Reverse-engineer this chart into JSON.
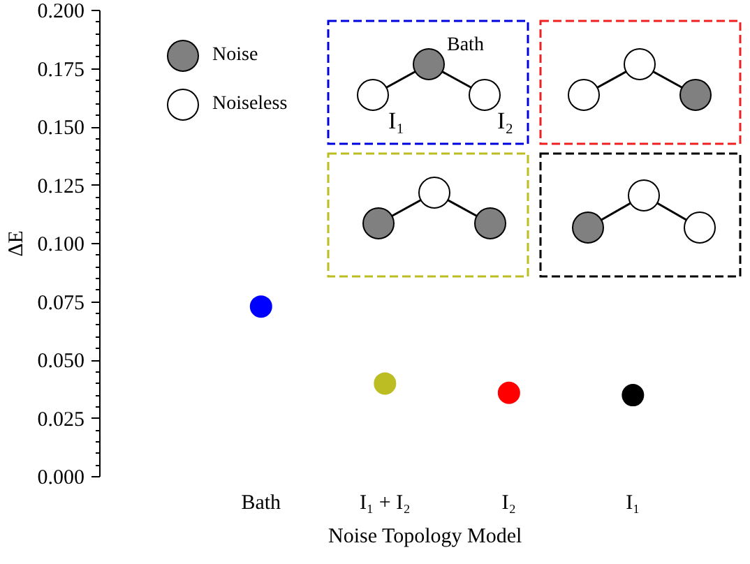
{
  "chart_data": {
    "type": "scatter",
    "xlabel": "Noise Topology Model",
    "ylabel": "ΔE",
    "categories": [
      "Bath",
      "I₁ + I₂",
      "I₂",
      "I₁"
    ],
    "values": [
      0.073,
      0.04,
      0.036,
      0.035
    ],
    "colors": [
      "#0000ff",
      "#bcbd22",
      "#ff0000",
      "#000000"
    ],
    "marker": "circle",
    "ylim": [
      0,
      0.2
    ],
    "yticks": [
      {
        "value": 0,
        "label": "0.000"
      },
      {
        "value": 0.025,
        "label": "0.025"
      },
      {
        "value": 0.05,
        "label": "0.050"
      },
      {
        "value": 0.075,
        "label": "0.075"
      },
      {
        "value": 0.1,
        "label": "0.100"
      },
      {
        "value": 0.125,
        "label": "0.125"
      },
      {
        "value": 0.15,
        "label": "0.150"
      },
      {
        "value": 0.175,
        "label": "0.175"
      },
      {
        "value": 0.2,
        "label": "0.200"
      }
    ],
    "grid": false,
    "annotations": [
      "Noise",
      "Noiseless",
      "Bath",
      "I₁",
      "I₂"
    ]
  }
}
